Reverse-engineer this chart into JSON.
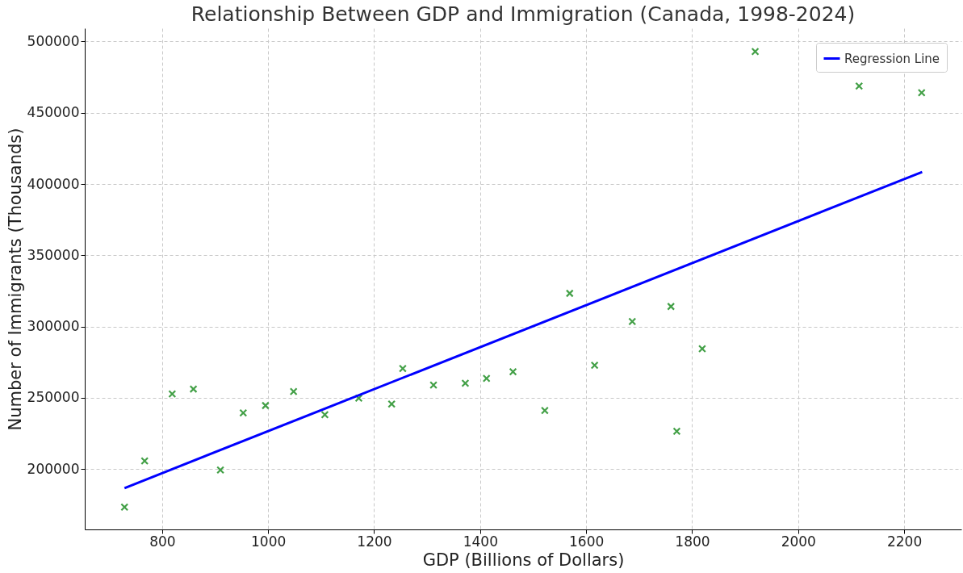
{
  "chart_data": {
    "type": "scatter",
    "title": "Relationship Between GDP and Immigration (Canada, 1998-2024)",
    "xlabel": "GDP (Billions of Dollars)",
    "ylabel": "Number of Immigrants (Thousands)",
    "xlim": [
      654,
      2308
    ],
    "ylim": [
      157700,
      509300
    ],
    "xticks": [
      800,
      1000,
      1200,
      1400,
      1600,
      1800,
      2000,
      2200
    ],
    "yticks": [
      200000,
      250000,
      300000,
      350000,
      400000,
      450000,
      500000
    ],
    "grid": true,
    "legend": "top right",
    "series": [
      {
        "marker": "cross",
        "color": "#43a047",
        "x": [
          729,
          767,
          819,
          859,
          910,
          953,
          995,
          1048,
          1107,
          1171,
          1233,
          1254,
          1312,
          1372,
          1412,
          1462,
          1522,
          1569,
          1616,
          1687,
          1760,
          1771,
          1819,
          1919,
          2115,
          2233
        ],
        "values": [
          173300,
          205800,
          252700,
          256200,
          199400,
          239400,
          244600,
          254400,
          238200,
          249800,
          245700,
          270600,
          259000,
          260200,
          263700,
          268300,
          241100,
          323300,
          272900,
          303600,
          314100,
          226600,
          284500,
          493000,
          468700,
          464100
        ]
      },
      {
        "type": "line",
        "name": "Regression Line",
        "color": "#0000ff",
        "line_style": "solid",
        "x": [
          729,
          2234
        ],
        "values": [
          186700,
          408500
        ]
      }
    ]
  }
}
